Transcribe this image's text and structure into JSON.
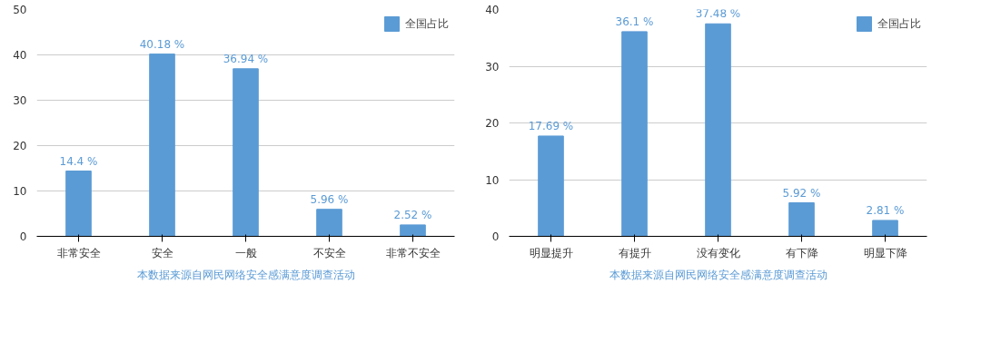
{
  "chart_data": [
    {
      "type": "bar",
      "categories": [
        "非常安全",
        "安全",
        "一般",
        "不安全",
        "非常不安全"
      ],
      "series": [
        {
          "name": "全国占比",
          "color": "#5b9bd5",
          "values": [
            14.4,
            40.18,
            36.94,
            5.96,
            2.52
          ],
          "value_labels": [
            "14.4 %",
            "40.18 %",
            "36.94 %",
            "5.96 %",
            "2.52 %"
          ]
        }
      ],
      "ylim": [
        0,
        50
      ],
      "yticks": [
        0,
        10,
        20,
        30,
        40,
        50
      ],
      "grid": "y",
      "legend": "top right",
      "annotations": [
        "本数据来源自网民网络安全感满意度调查活动"
      ]
    },
    {
      "type": "bar",
      "categories": [
        "明显提升",
        "有提升",
        "没有变化",
        "有下降",
        "明显下降"
      ],
      "series": [
        {
          "name": "全国占比",
          "color": "#5b9bd5",
          "values": [
            17.69,
            36.1,
            37.48,
            5.92,
            2.81
          ],
          "value_labels": [
            "17.69 %",
            "36.1 %",
            "37.48 %",
            "5.92 %",
            "2.81 %"
          ]
        }
      ],
      "ylim": [
        0,
        40
      ],
      "yticks": [
        0,
        10,
        20,
        30,
        40
      ],
      "grid": "y",
      "legend": "top right",
      "annotations": [
        "本数据来源自网民网络安全感满意度调查活动"
      ]
    }
  ]
}
